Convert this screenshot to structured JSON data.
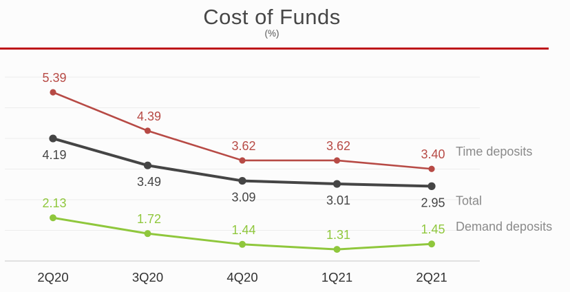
{
  "header": {
    "title": "Cost of Funds",
    "subtitle": "(%)"
  },
  "divider": {
    "color": "#bd1118"
  },
  "chart_data": {
    "type": "line",
    "title": "Cost of Funds",
    "unit": "(%)",
    "categories": [
      "2Q20",
      "3Q20",
      "4Q20",
      "1Q21",
      "2Q21"
    ],
    "series": [
      {
        "name": "Time deposits",
        "color": "#b74a45",
        "values": [
          5.39,
          4.39,
          3.62,
          3.62,
          3.4
        ],
        "label_position": "above"
      },
      {
        "name": "Total",
        "color": "#454545",
        "values": [
          4.19,
          3.49,
          3.09,
          3.01,
          2.95
        ],
        "label_position": "below"
      },
      {
        "name": "Demand deposits",
        "color": "#8fc73c",
        "values": [
          2.13,
          1.72,
          1.44,
          1.31,
          1.45
        ],
        "label_position": "above"
      }
    ],
    "value_format": "2-decimals",
    "y_axis_labels": "none",
    "grid": "horizontal-only",
    "grid_color": "#ededed",
    "axis_line_color": "#d8d8d8",
    "axis_text_color": "#303030",
    "legend_position": "right-of-last-point",
    "legend_text_color": "#8a8a8a"
  }
}
